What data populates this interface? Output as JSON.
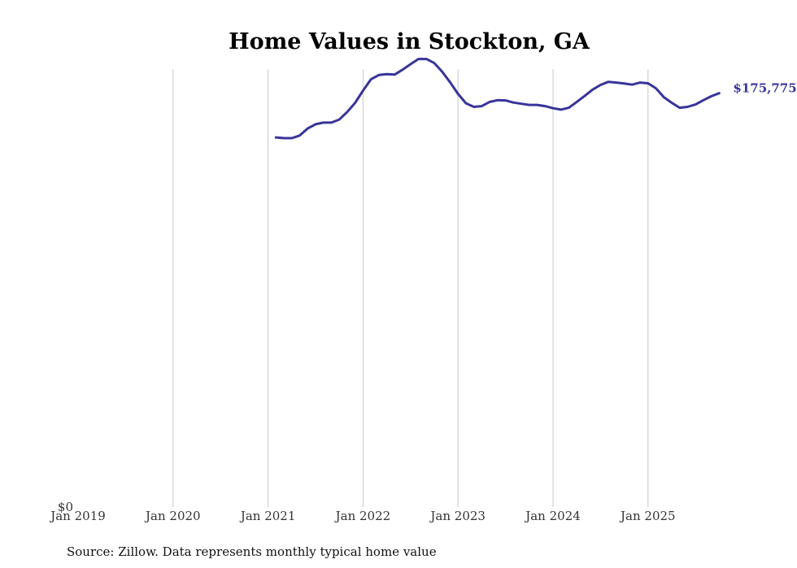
{
  "chart_data": {
    "type": "line",
    "title": "Home Values in Stockton, GA",
    "xlabel": "",
    "ylabel": "",
    "x_ticks": [
      "Jan 2019",
      "Jan 2020",
      "Jan 2021",
      "Jan 2022",
      "Jan 2023",
      "Jan 2024",
      "Jan 2025"
    ],
    "y_ticks": [
      "$0"
    ],
    "ylim": [
      0,
      185000
    ],
    "xlim": [
      2019.0,
      2025.9
    ],
    "grid": "vertical",
    "series": [
      {
        "name": "Stockton, GA",
        "color": "#38349a",
        "end_label": "$175,775",
        "x": [
          2021.083,
          2021.167,
          2021.25,
          2021.333,
          2021.417,
          2021.5,
          2021.583,
          2021.667,
          2021.75,
          2021.833,
          2021.917,
          2022.0,
          2022.083,
          2022.167,
          2022.25,
          2022.333,
          2022.417,
          2022.5,
          2022.583,
          2022.667,
          2022.75,
          2022.833,
          2022.917,
          2023.0,
          2023.083,
          2023.167,
          2023.25,
          2023.333,
          2023.417,
          2023.5,
          2023.583,
          2023.667,
          2023.75,
          2023.833,
          2023.917,
          2024.0,
          2024.083,
          2024.167,
          2024.25,
          2024.333,
          2024.417,
          2024.5,
          2024.583,
          2024.667,
          2024.75,
          2024.833,
          2024.917,
          2025.0,
          2025.083,
          2025.167,
          2025.25,
          2025.333,
          2025.417,
          2025.5,
          2025.583,
          2025.667,
          2025.75
        ],
        "values": [
          157000,
          156700,
          156700,
          157800,
          160800,
          162600,
          163300,
          163300,
          164600,
          167800,
          171700,
          176900,
          181700,
          183500,
          183900,
          183700,
          185800,
          188100,
          190300,
          190300,
          188600,
          184900,
          180400,
          175500,
          171500,
          170000,
          170300,
          172100,
          172800,
          172700,
          171800,
          171300,
          170800,
          170800,
          170300,
          169400,
          168800,
          169600,
          172100,
          174600,
          177300,
          179300,
          180600,
          180300,
          179900,
          179400,
          180300,
          180000,
          177900,
          174100,
          171700,
          169600,
          170000,
          171000,
          172800,
          174500,
          175775
        ]
      }
    ]
  },
  "footer": {
    "source": "Source: Zillow. Data represents monthly typical home value"
  }
}
